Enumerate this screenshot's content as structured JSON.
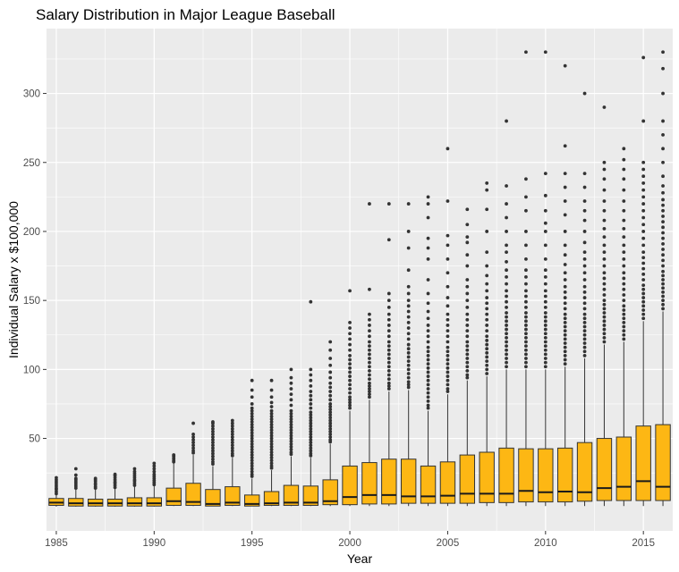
{
  "chart_data": {
    "type": "boxplot",
    "title": "Salary Distribution in Major League Baseball",
    "xlabel": "Year",
    "ylabel": "Individual Salary x $100,000",
    "x_ticks": [
      1985,
      1990,
      1995,
      2000,
      2005,
      2010,
      2015
    ],
    "y_ticks": [
      50,
      100,
      150,
      200,
      250,
      300
    ],
    "xlim": [
      1984.5,
      2016.5
    ],
    "ylim": [
      -17,
      347
    ],
    "grid": true,
    "legend": "none",
    "fill_color": "#FDB714",
    "box_edge_color": "#333333",
    "outlier_color": "#333333",
    "panel_color": "#EBEBEB",
    "boxes": [
      {
        "year": 1985,
        "q1": 1.5,
        "median": 3.5,
        "q3": 6.5,
        "whisker_low": 0.6,
        "whisker_high": 9,
        "outliers": [
          10,
          11.5,
          13,
          14,
          15.5,
          17,
          18.5,
          20,
          21.5
        ]
      },
      {
        "year": 1986,
        "q1": 1,
        "median": 3,
        "q3": 6.5,
        "whisker_low": 0.6,
        "whisker_high": 13,
        "outliers": [
          14,
          15.5,
          17,
          18.5,
          20,
          21,
          23.5,
          28
        ]
      },
      {
        "year": 1987,
        "q1": 1,
        "median": 3,
        "q3": 6,
        "whisker_low": 0.6,
        "whisker_high": 13,
        "outliers": [
          14,
          15,
          16.5,
          17.5,
          19,
          20,
          21
        ]
      },
      {
        "year": 1988,
        "q1": 1,
        "median": 3,
        "q3": 6,
        "whisker_low": 0.6,
        "whisker_high": 13.5,
        "outliers": [
          14.5,
          16,
          17.5,
          18.5,
          20,
          21.5,
          23,
          24
        ]
      },
      {
        "year": 1989,
        "q1": 1,
        "median": 3,
        "q3": 7,
        "whisker_low": 0.6,
        "whisker_high": 15,
        "outliers": [
          16,
          17.5,
          19,
          20,
          21.5,
          23,
          24.5,
          26,
          28
        ]
      },
      {
        "year": 1990,
        "q1": 1,
        "median": 3,
        "q3": 7,
        "whisker_low": 0.6,
        "whisker_high": 15.5,
        "outliers": [
          16.5,
          18,
          19.5,
          21,
          22.5,
          24,
          26,
          28,
          30,
          32
        ]
      },
      {
        "year": 1991,
        "q1": 1.5,
        "median": 4.5,
        "q3": 14,
        "whisker_low": 1,
        "whisker_high": 32,
        "outliers": [
          33,
          34,
          35.5,
          37,
          38
        ]
      },
      {
        "year": 1992,
        "q1": 1.5,
        "median": 4,
        "q3": 17.5,
        "whisker_low": 1,
        "whisker_high": 38,
        "outliers": [
          39.5,
          41,
          43,
          45,
          47,
          49,
          51,
          53,
          61
        ]
      },
      {
        "year": 1993,
        "q1": 1,
        "median": 2.5,
        "q3": 13,
        "whisker_low": 1,
        "whisker_high": 30,
        "outliers": [
          31.5,
          33,
          35,
          37,
          39,
          41,
          43,
          45,
          47,
          49,
          51,
          53,
          55,
          57,
          59,
          61,
          62
        ]
      },
      {
        "year": 1994,
        "q1": 1.5,
        "median": 3.5,
        "q3": 15,
        "whisker_low": 1,
        "whisker_high": 36,
        "outliers": [
          37.5,
          39,
          41,
          43,
          45,
          47,
          49,
          51,
          53,
          55,
          57,
          59,
          61,
          63
        ]
      },
      {
        "year": 1995,
        "q1": 1,
        "median": 2.5,
        "q3": 9,
        "whisker_low": 1,
        "whisker_high": 21,
        "outliers": [
          22.5,
          24,
          26,
          28,
          30,
          32,
          34,
          36,
          38,
          40,
          42,
          44,
          46,
          48,
          50,
          52,
          54,
          56,
          58,
          60,
          62,
          64,
          66,
          68,
          70,
          72,
          75,
          80,
          85,
          92
        ]
      },
      {
        "year": 1996,
        "q1": 1.5,
        "median": 3,
        "q3": 11.5,
        "whisker_low": 1,
        "whisker_high": 27,
        "outliers": [
          28.5,
          30,
          32,
          34,
          36,
          38,
          40,
          42,
          44,
          46,
          48,
          50,
          52,
          54,
          56,
          58,
          60,
          62,
          64,
          66,
          68,
          70,
          73,
          76,
          80,
          85,
          92
        ]
      },
      {
        "year": 1997,
        "q1": 1.5,
        "median": 3.5,
        "q3": 16,
        "whisker_low": 1,
        "whisker_high": 37,
        "outliers": [
          38.5,
          40,
          42,
          44,
          46,
          48,
          50,
          52,
          54,
          56,
          58,
          60,
          62,
          64,
          66,
          68,
          70,
          74,
          78,
          82,
          86,
          90,
          94,
          100
        ]
      },
      {
        "year": 1998,
        "q1": 1.5,
        "median": 3.5,
        "q3": 15.5,
        "whisker_low": 1,
        "whisker_high": 36,
        "outliers": [
          37.5,
          39,
          41,
          43,
          45,
          47,
          49,
          51,
          53,
          55,
          57,
          59,
          61,
          63,
          65,
          67,
          69,
          72,
          75,
          78,
          81,
          84,
          88,
          92,
          96,
          100,
          149
        ]
      },
      {
        "year": 1999,
        "q1": 2,
        "median": 4.5,
        "q3": 20,
        "whisker_low": 1,
        "whisker_high": 46,
        "outliers": [
          47.5,
          49,
          51,
          53,
          55,
          57,
          59,
          61,
          63,
          65,
          67,
          69,
          71,
          73,
          75,
          78,
          81,
          84,
          87,
          90,
          94,
          98,
          103,
          108,
          114,
          120
        ]
      },
      {
        "year": 2000,
        "q1": 2,
        "median": 7.5,
        "q3": 30,
        "whisker_low": 1,
        "whisker_high": 70,
        "outliers": [
          72,
          74,
          76,
          78,
          80,
          83,
          86,
          89,
          92,
          95,
          98,
          101,
          104,
          107,
          110,
          114,
          118,
          122,
          126,
          130,
          134,
          157
        ]
      },
      {
        "year": 2001,
        "q1": 2.5,
        "median": 9,
        "q3": 32.5,
        "whisker_low": 1,
        "whisker_high": 78,
        "outliers": [
          80,
          82,
          84,
          86,
          88,
          90,
          93,
          96,
          99,
          102,
          105,
          108,
          111,
          114,
          117,
          120,
          124,
          128,
          132,
          136,
          140,
          158,
          220
        ]
      },
      {
        "year": 2002,
        "q1": 2.5,
        "median": 9,
        "q3": 35,
        "whisker_low": 1,
        "whisker_high": 84,
        "outliers": [
          86,
          88,
          90,
          93,
          96,
          99,
          102,
          105,
          108,
          111,
          114,
          117,
          120,
          124,
          128,
          132,
          136,
          140,
          145,
          150,
          155,
          194,
          220
        ]
      },
      {
        "year": 2003,
        "q1": 3,
        "median": 8,
        "q3": 35,
        "whisker_low": 1,
        "whisker_high": 85,
        "outliers": [
          87,
          89,
          91,
          94,
          97,
          100,
          103,
          106,
          109,
          112,
          115,
          118,
          122,
          126,
          130,
          134,
          138,
          142,
          146,
          150,
          155,
          160,
          172,
          188,
          200,
          220
        ]
      },
      {
        "year": 2004,
        "q1": 3,
        "median": 8,
        "q3": 30,
        "whisker_low": 1,
        "whisker_high": 70,
        "outliers": [
          72,
          74,
          77,
          80,
          83,
          86,
          89,
          92,
          95,
          98,
          101,
          104,
          107,
          110,
          113,
          116,
          120,
          124,
          128,
          132,
          137,
          142,
          148,
          155,
          165,
          180,
          188,
          195,
          210,
          220,
          225
        ]
      },
      {
        "year": 2005,
        "q1": 3,
        "median": 8.5,
        "q3": 33,
        "whisker_low": 1,
        "whisker_high": 82,
        "outliers": [
          84,
          86,
          89,
          92,
          95,
          98,
          101,
          104,
          107,
          110,
          113,
          116,
          120,
          124,
          128,
          132,
          136,
          140,
          146,
          152,
          160,
          170,
          180,
          190,
          197,
          222,
          260
        ]
      },
      {
        "year": 2006,
        "q1": 3,
        "median": 10,
        "q3": 38,
        "whisker_low": 1,
        "whisker_high": 92,
        "outliers": [
          94,
          96,
          99,
          102,
          105,
          108,
          111,
          114,
          117,
          120,
          124,
          128,
          132,
          136,
          140,
          145,
          150,
          155,
          160,
          165,
          175,
          183,
          192,
          196,
          205,
          216
        ]
      },
      {
        "year": 2007,
        "q1": 3.5,
        "median": 10,
        "q3": 40,
        "whisker_low": 1,
        "whisker_high": 95,
        "outliers": [
          97,
          100,
          103,
          106,
          109,
          112,
          115,
          118,
          121,
          124,
          128,
          132,
          136,
          140,
          144,
          148,
          152,
          157,
          162,
          168,
          175,
          185,
          200,
          216,
          230,
          235
        ]
      },
      {
        "year": 2008,
        "q1": 3.5,
        "median": 10,
        "q3": 43,
        "whisker_low": 1,
        "whisker_high": 100,
        "outliers": [
          102,
          105,
          108,
          111,
          114,
          117,
          120,
          123,
          126,
          129,
          132,
          135,
          138,
          141,
          145,
          149,
          153,
          157,
          162,
          167,
          172,
          178,
          185,
          190,
          200,
          210,
          220,
          233,
          280
        ]
      },
      {
        "year": 2009,
        "q1": 4,
        "median": 12,
        "q3": 42.5,
        "whisker_low": 1,
        "whisker_high": 100,
        "outliers": [
          102,
          105,
          108,
          111,
          114,
          117,
          120,
          123,
          126,
          129,
          132,
          135,
          138,
          141,
          145,
          149,
          153,
          157,
          162,
          167,
          172,
          180,
          190,
          200,
          215,
          225,
          238,
          330
        ]
      },
      {
        "year": 2010,
        "q1": 4,
        "median": 11,
        "q3": 42.5,
        "whisker_low": 1,
        "whisker_high": 100,
        "outliers": [
          102,
          105,
          108,
          111,
          114,
          117,
          120,
          123,
          126,
          129,
          132,
          135,
          138,
          141,
          145,
          149,
          153,
          157,
          162,
          167,
          172,
          180,
          190,
          200,
          206,
          215,
          226,
          242,
          330
        ]
      },
      {
        "year": 2011,
        "q1": 4,
        "median": 11.5,
        "q3": 43,
        "whisker_low": 1,
        "whisker_high": 102,
        "outliers": [
          104,
          107,
          110,
          113,
          116,
          119,
          122,
          125,
          128,
          131,
          134,
          137,
          140,
          144,
          148,
          152,
          156,
          160,
          165,
          170,
          176,
          183,
          190,
          200,
          212,
          222,
          232,
          242,
          262,
          320
        ]
      },
      {
        "year": 2012,
        "q1": 4.5,
        "median": 11,
        "q3": 47,
        "whisker_low": 1,
        "whisker_high": 108,
        "outliers": [
          110,
          113,
          116,
          119,
          122,
          125,
          128,
          131,
          134,
          137,
          140,
          144,
          148,
          152,
          156,
          160,
          165,
          170,
          175,
          180,
          185,
          192,
          200,
          208,
          215,
          222,
          232,
          242,
          300
        ]
      },
      {
        "year": 2013,
        "q1": 5,
        "median": 14,
        "q3": 50,
        "whisker_low": 1,
        "whisker_high": 118,
        "outliers": [
          120,
          123,
          126,
          129,
          132,
          135,
          138,
          141,
          144,
          147,
          150,
          154,
          158,
          162,
          166,
          170,
          175,
          180,
          185,
          190,
          196,
          202,
          208,
          215,
          222,
          230,
          238,
          245,
          250,
          290
        ]
      },
      {
        "year": 2014,
        "q1": 5,
        "median": 15,
        "q3": 51,
        "whisker_low": 1,
        "whisker_high": 120,
        "outliers": [
          122,
          125,
          128,
          131,
          134,
          137,
          140,
          143,
          146,
          150,
          154,
          158,
          162,
          166,
          170,
          175,
          180,
          185,
          190,
          196,
          202,
          208,
          215,
          222,
          230,
          238,
          245,
          252,
          260
        ]
      },
      {
        "year": 2015,
        "q1": 5,
        "median": 19,
        "q3": 59,
        "whisker_low": 1,
        "whisker_high": 135,
        "outliers": [
          137,
          140,
          143,
          146,
          149,
          152,
          155,
          158,
          161,
          165,
          169,
          173,
          177,
          181,
          185,
          190,
          195,
          200,
          205,
          210,
          215,
          220,
          225,
          230,
          235,
          240,
          245,
          250,
          280,
          326
        ]
      },
      {
        "year": 2016,
        "q1": 5,
        "median": 15,
        "q3": 60,
        "whisker_low": 1,
        "whisker_high": 142,
        "outliers": [
          144,
          147,
          150,
          153,
          156,
          159,
          162,
          165,
          168,
          171,
          175,
          179,
          183,
          187,
          191,
          195,
          199,
          203,
          207,
          211,
          215,
          219,
          223,
          228,
          233,
          240,
          250,
          260,
          270,
          280,
          300,
          318,
          330
        ]
      }
    ]
  }
}
